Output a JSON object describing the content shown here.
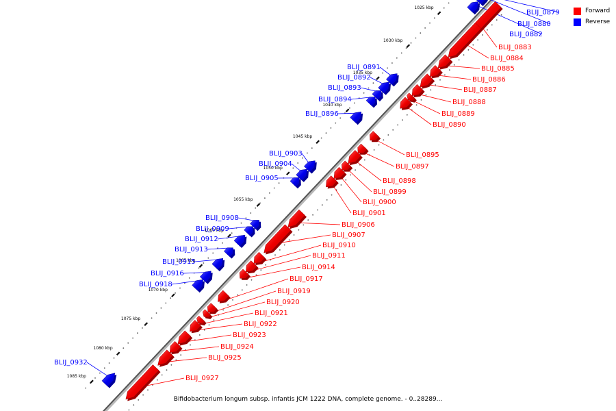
{
  "legend": {
    "forward_label": "Forward",
    "reverse_label": "Reverse",
    "forward_color": "#ff0000",
    "reverse_color": "#0000ff"
  },
  "caption": "Bifidobacterium longum subsp. infantis JCM 1222 DNA, complete genome. - 0..28289...",
  "ticks": [
    "1025 kbp",
    "1030 kbp",
    "1035 kbp",
    "1040 kbp",
    "1045 kbp",
    "1050 kbp",
    "1055 kbp",
    "1060 kbp",
    "1065 kbp",
    "1070 kbp",
    "1075 kbp",
    "1080 kbp",
    "1085 kbp"
  ],
  "genes": [
    {
      "label": "BLIJ_0879",
      "strand": "reverse"
    },
    {
      "label": "BLIJ_0880",
      "strand": "reverse"
    },
    {
      "label": "BLIJ_0882",
      "strand": "reverse"
    },
    {
      "label": "BLIJ_0883",
      "strand": "forward"
    },
    {
      "label": "BLIJ_0884",
      "strand": "forward"
    },
    {
      "label": "BLIJ_0885",
      "strand": "forward"
    },
    {
      "label": "BLIJ_0886",
      "strand": "forward"
    },
    {
      "label": "BLIJ_0887",
      "strand": "forward"
    },
    {
      "label": "BLIJ_0888",
      "strand": "forward"
    },
    {
      "label": "BLIJ_0889",
      "strand": "forward"
    },
    {
      "label": "BLIJ_0890",
      "strand": "forward"
    },
    {
      "label": "BLIJ_0891",
      "strand": "reverse"
    },
    {
      "label": "BLIJ_0892",
      "strand": "reverse"
    },
    {
      "label": "BLIJ_0893",
      "strand": "reverse"
    },
    {
      "label": "BLIJ_0894",
      "strand": "reverse"
    },
    {
      "label": "BLIJ_0896",
      "strand": "reverse"
    },
    {
      "label": "BLIJ_0895",
      "strand": "forward"
    },
    {
      "label": "BLIJ_0897",
      "strand": "forward"
    },
    {
      "label": "BLIJ_0898",
      "strand": "forward"
    },
    {
      "label": "BLIJ_0899",
      "strand": "forward"
    },
    {
      "label": "BLIJ_0900",
      "strand": "forward"
    },
    {
      "label": "BLIJ_0901",
      "strand": "forward"
    },
    {
      "label": "BLIJ_0903",
      "strand": "reverse"
    },
    {
      "label": "BLIJ_0904",
      "strand": "reverse"
    },
    {
      "label": "BLIJ_0905",
      "strand": "reverse"
    },
    {
      "label": "BLIJ_0906",
      "strand": "forward"
    },
    {
      "label": "BLIJ_0907",
      "strand": "forward"
    },
    {
      "label": "BLIJ_0910",
      "strand": "forward"
    },
    {
      "label": "BLIJ_0911",
      "strand": "forward"
    },
    {
      "label": "BLIJ_0908",
      "strand": "reverse"
    },
    {
      "label": "BLIJ_0909",
      "strand": "reverse"
    },
    {
      "label": "BLIJ_0912",
      "strand": "reverse"
    },
    {
      "label": "BLIJ_0913",
      "strand": "reverse"
    },
    {
      "label": "BLIJ_0915",
      "strand": "reverse"
    },
    {
      "label": "BLIJ_0916",
      "strand": "reverse"
    },
    {
      "label": "BLIJ_0918",
      "strand": "reverse"
    },
    {
      "label": "BLIJ_0914",
      "strand": "forward"
    },
    {
      "label": "BLIJ_0917",
      "strand": "forward"
    },
    {
      "label": "BLIJ_0919",
      "strand": "forward"
    },
    {
      "label": "BLIJ_0920",
      "strand": "forward"
    },
    {
      "label": "BLIJ_0921",
      "strand": "forward"
    },
    {
      "label": "BLIJ_0922",
      "strand": "forward"
    },
    {
      "label": "BLIJ_0923",
      "strand": "forward"
    },
    {
      "label": "BLIJ_0924",
      "strand": "forward"
    },
    {
      "label": "BLIJ_0925",
      "strand": "forward"
    },
    {
      "label": "BLIJ_0927",
      "strand": "forward"
    },
    {
      "label": "BLIJ_0932",
      "strand": "reverse"
    }
  ]
}
